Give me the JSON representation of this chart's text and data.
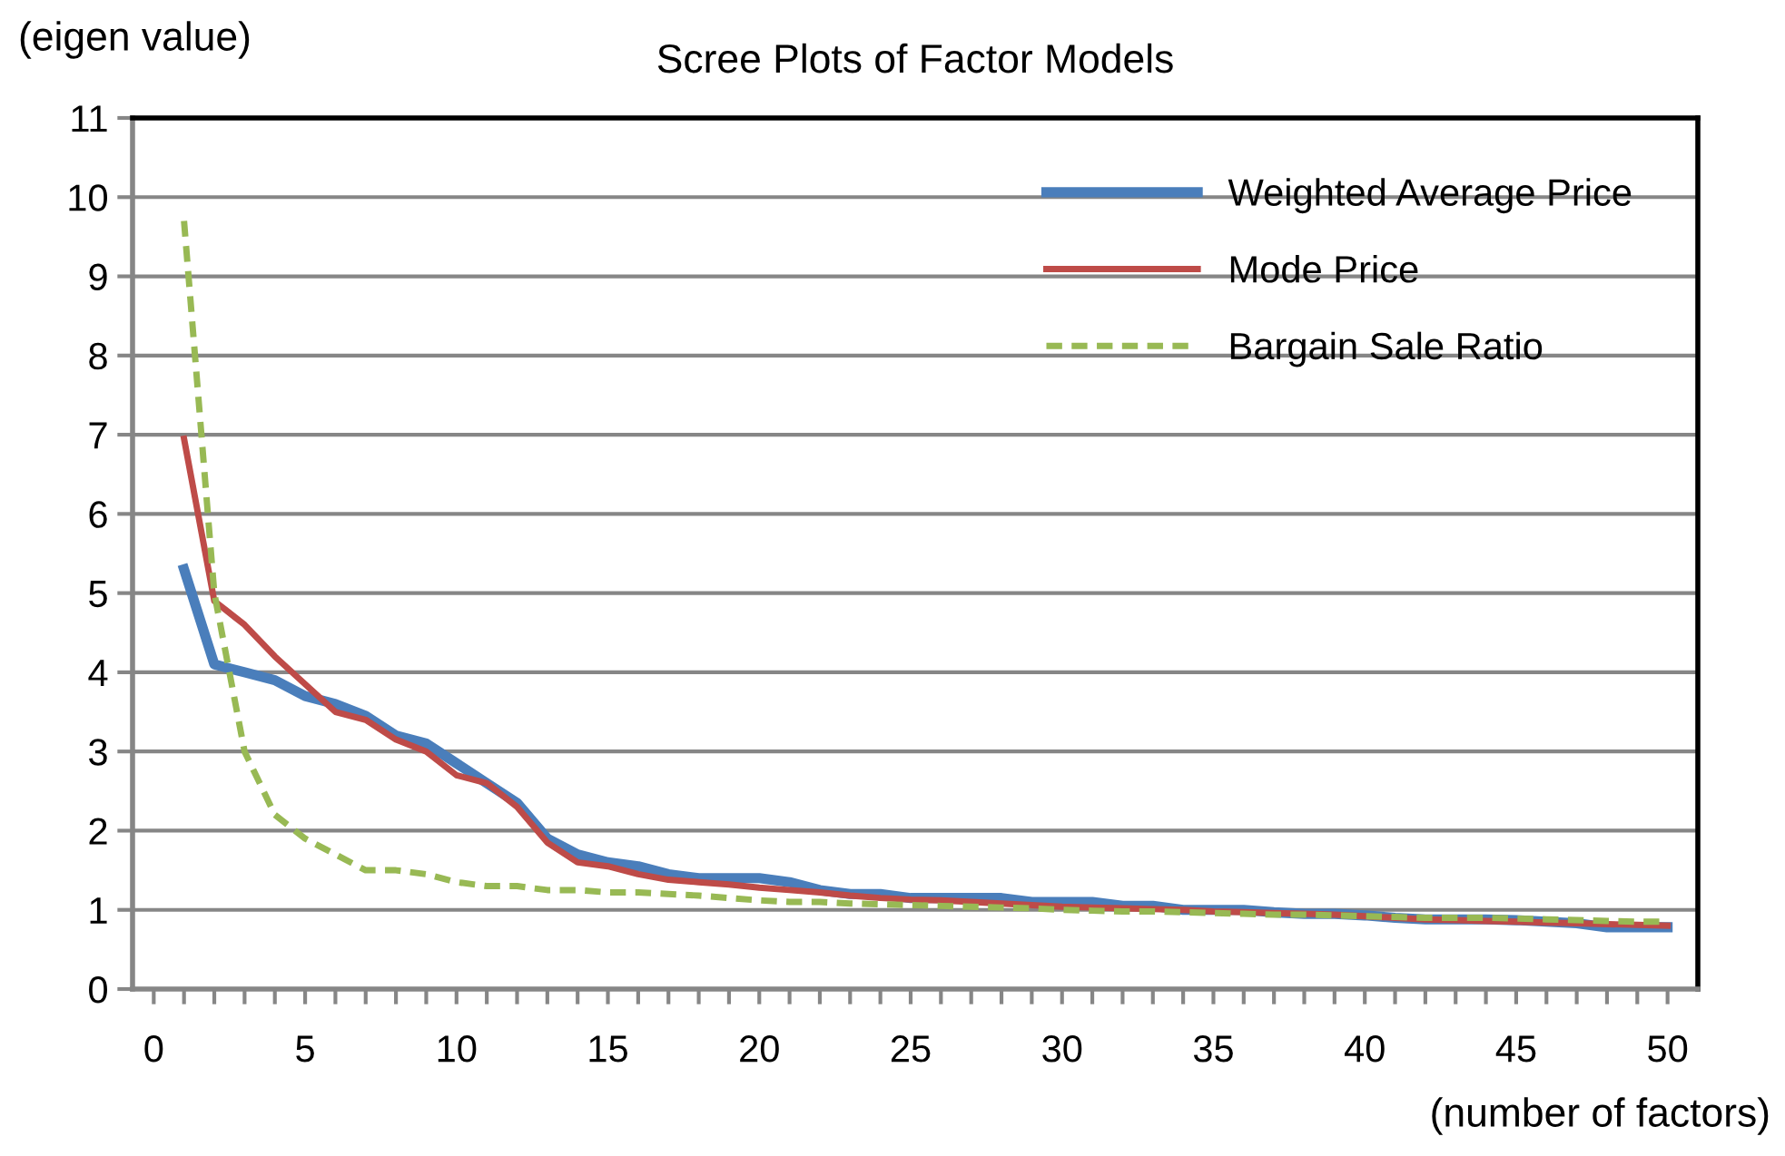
{
  "chart_data": {
    "type": "line",
    "title": "Scree Plots of Factor Models",
    "xlabel": "(number of factors)",
    "ylabel": "(eigen value)",
    "x": [
      1,
      2,
      3,
      4,
      5,
      6,
      7,
      8,
      9,
      10,
      11,
      12,
      13,
      14,
      15,
      16,
      17,
      18,
      19,
      20,
      21,
      22,
      23,
      24,
      25,
      26,
      27,
      28,
      29,
      30,
      31,
      32,
      33,
      34,
      35,
      36,
      37,
      38,
      39,
      40,
      41,
      42,
      43,
      44,
      45,
      46,
      47,
      48,
      49,
      50
    ],
    "series": [
      {
        "name": "Weighted Average Price",
        "color": "#4a7ebb",
        "line_style": "solid",
        "values": [
          5.3,
          4.1,
          4.0,
          3.9,
          3.7,
          3.6,
          3.45,
          3.2,
          3.1,
          2.85,
          2.6,
          2.35,
          1.9,
          1.7,
          1.6,
          1.55,
          1.45,
          1.4,
          1.4,
          1.4,
          1.35,
          1.25,
          1.2,
          1.2,
          1.15,
          1.15,
          1.15,
          1.15,
          1.1,
          1.1,
          1.1,
          1.05,
          1.05,
          1.0,
          1.0,
          1.0,
          0.97,
          0.95,
          0.95,
          0.93,
          0.9,
          0.88,
          0.88,
          0.88,
          0.87,
          0.85,
          0.83,
          0.78,
          0.78,
          0.78
        ]
      },
      {
        "name": "Mode Price",
        "color": "#be4b48",
        "line_style": "solid",
        "values": [
          6.95,
          4.9,
          4.6,
          4.2,
          3.85,
          3.5,
          3.4,
          3.15,
          3.0,
          2.7,
          2.6,
          2.3,
          1.85,
          1.6,
          1.55,
          1.45,
          1.38,
          1.35,
          1.32,
          1.28,
          1.25,
          1.22,
          1.18,
          1.15,
          1.13,
          1.12,
          1.1,
          1.08,
          1.06,
          1.04,
          1.03,
          1.02,
          1.01,
          1.0,
          0.98,
          0.97,
          0.96,
          0.95,
          0.94,
          0.92,
          0.9,
          0.88,
          0.87,
          0.86,
          0.85,
          0.84,
          0.83,
          0.82,
          0.81,
          0.8
        ]
      },
      {
        "name": "Bargain Sale Ratio",
        "color": "#98b954",
        "line_style": "dashed",
        "values": [
          9.7,
          5.0,
          3.0,
          2.2,
          1.9,
          1.7,
          1.5,
          1.5,
          1.45,
          1.35,
          1.3,
          1.3,
          1.25,
          1.25,
          1.22,
          1.22,
          1.2,
          1.18,
          1.15,
          1.12,
          1.1,
          1.1,
          1.08,
          1.07,
          1.06,
          1.05,
          1.04,
          1.03,
          1.02,
          1.0,
          0.99,
          0.98,
          0.98,
          0.97,
          0.96,
          0.95,
          0.94,
          0.94,
          0.93,
          0.92,
          0.91,
          0.9,
          0.9,
          0.9,
          0.89,
          0.88,
          0.87,
          0.86,
          0.85,
          0.85
        ]
      }
    ],
    "xlim": [
      -0.7,
      51
    ],
    "ylim": [
      0,
      11
    ],
    "xticks": [
      0,
      {
        "value": 1,
        "label": null
      },
      {
        "value": 2,
        "label": null
      },
      {
        "value": 3,
        "label": null
      },
      {
        "value": 4,
        "label": null
      },
      5,
      {
        "value": 6,
        "label": null
      },
      {
        "value": 7,
        "label": null
      },
      {
        "value": 8,
        "label": null
      },
      {
        "value": 9,
        "label": null
      },
      10,
      {
        "value": 11,
        "label": null
      },
      {
        "value": 12,
        "label": null
      },
      {
        "value": 13,
        "label": null
      },
      {
        "value": 14,
        "label": null
      },
      15,
      {
        "value": 16,
        "label": null
      },
      {
        "value": 17,
        "label": null
      },
      {
        "value": 18,
        "label": null
      },
      {
        "value": 19,
        "label": null
      },
      20,
      {
        "value": 21,
        "label": null
      },
      {
        "value": 22,
        "label": null
      },
      {
        "value": 23,
        "label": null
      },
      {
        "value": 24,
        "label": null
      },
      25,
      {
        "value": 26,
        "label": null
      },
      {
        "value": 27,
        "label": null
      },
      {
        "value": 28,
        "label": null
      },
      {
        "value": 29,
        "label": null
      },
      30,
      {
        "value": 31,
        "label": null
      },
      {
        "value": 32,
        "label": null
      },
      {
        "value": 33,
        "label": null
      },
      {
        "value": 34,
        "label": null
      },
      35,
      {
        "value": 36,
        "label": null
      },
      {
        "value": 37,
        "label": null
      },
      {
        "value": 38,
        "label": null
      },
      {
        "value": 39,
        "label": null
      },
      40,
      {
        "value": 41,
        "label": null
      },
      {
        "value": 42,
        "label": null
      },
      {
        "value": 43,
        "label": null
      },
      {
        "value": 44,
        "label": null
      },
      45,
      {
        "value": 46,
        "label": null
      },
      {
        "value": 47,
        "label": null
      },
      {
        "value": 48,
        "label": null
      },
      {
        "value": 49,
        "label": null
      },
      50
    ],
    "yticks": [
      0,
      1,
      2,
      3,
      4,
      5,
      6,
      7,
      8,
      9,
      10,
      11
    ],
    "grid": "y",
    "legend": "top right",
    "marker": "none"
  }
}
